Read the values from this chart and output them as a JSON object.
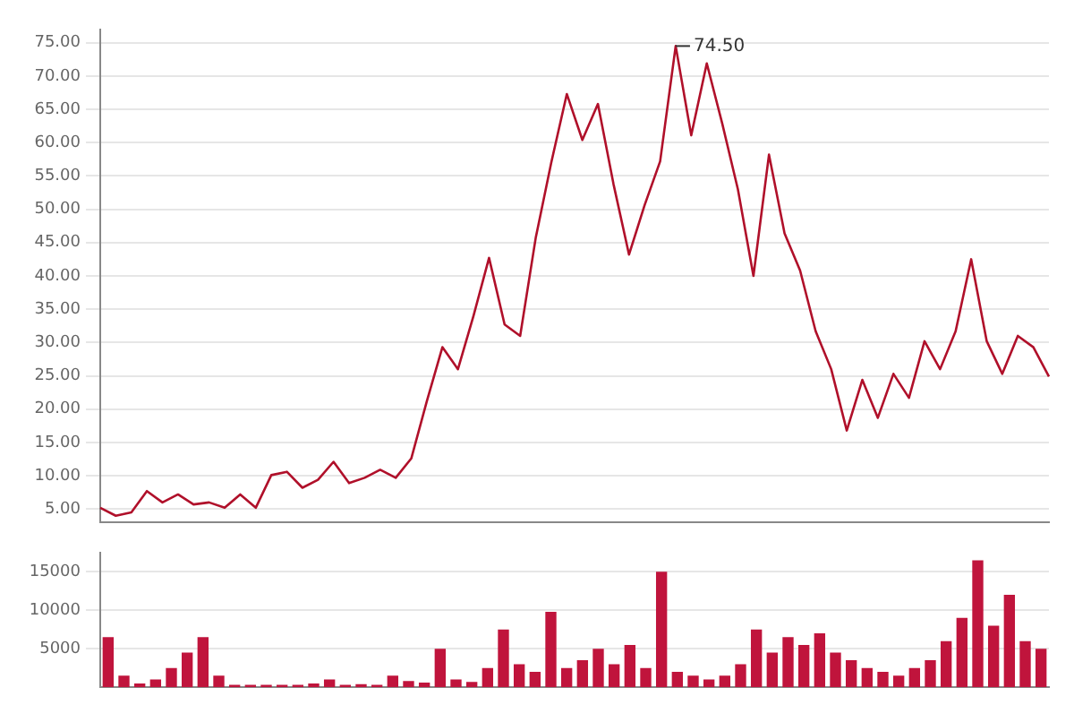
{
  "chart_data": [
    {
      "type": "line",
      "categories": [
        null,
        null,
        null,
        null,
        null,
        null,
        null,
        null,
        null,
        null,
        null,
        null,
        null,
        null,
        null,
        null,
        null,
        null,
        null,
        null,
        null,
        null,
        null,
        null,
        null,
        null,
        null,
        null,
        null,
        null,
        null,
        null,
        null,
        null,
        null,
        null,
        null,
        null,
        null,
        null,
        null,
        null,
        null,
        null,
        null,
        null,
        null,
        null,
        null,
        null,
        null,
        null,
        null,
        null,
        null,
        null,
        null,
        null,
        null,
        null,
        null,
        null
      ],
      "series": [
        {
          "color": "#b0102a",
          "values": [
            5.2,
            4.0,
            4.5,
            7.7,
            6.0,
            7.2,
            5.7,
            6.0,
            5.2,
            7.2,
            5.2,
            10.1,
            10.6,
            8.2,
            9.4,
            12.1,
            8.9,
            9.7,
            10.9,
            9.7,
            12.6,
            21.2,
            29.3,
            26,
            34,
            42.7,
            32.7,
            31,
            45.7,
            57,
            67.3,
            60.4,
            65.8,
            53.8,
            43.2,
            50.6,
            57.2,
            74.5,
            61.1,
            71.9,
            62.8,
            53,
            40,
            58.2,
            46.4,
            40.8,
            31.7,
            26,
            16.8,
            24.4,
            18.7,
            25.3,
            21.7,
            30.2,
            26,
            31.7,
            42.5,
            30.2,
            25.3,
            31,
            29.3,
            24.9
          ]
        }
      ],
      "ylim": [
        3,
        77
      ],
      "yticks": [
        {
          "value": 5,
          "label": "5.00"
        },
        {
          "value": 10,
          "label": "10.00"
        },
        {
          "value": 15,
          "label": "15.00"
        },
        {
          "value": 20,
          "label": "20.00"
        },
        {
          "value": 25,
          "label": "25.00"
        },
        {
          "value": 30,
          "label": "30.00"
        },
        {
          "value": 35,
          "label": "35.00"
        },
        {
          "value": 40,
          "label": "40.00"
        },
        {
          "value": 45,
          "label": "45.00"
        },
        {
          "value": 50,
          "label": "50.00"
        },
        {
          "value": 55,
          "label": "55.00"
        },
        {
          "value": 60,
          "label": "60.00"
        },
        {
          "value": 65,
          "label": "65.00"
        },
        {
          "value": 70,
          "label": "70.00"
        },
        {
          "value": 75,
          "label": "75.00"
        }
      ],
      "annotations": [
        "74.50"
      ],
      "grid": "y",
      "legend": false,
      "marker": "none",
      "tick_labels": "y"
    },
    {
      "type": "bar",
      "categories": [
        null,
        null,
        null,
        null,
        null,
        null,
        null,
        null,
        null,
        null,
        null,
        null,
        null,
        null,
        null,
        null,
        null,
        null,
        null,
        null,
        null,
        null,
        null,
        null,
        null,
        null,
        null,
        null,
        null,
        null,
        null,
        null,
        null,
        null,
        null,
        null,
        null,
        null,
        null,
        null,
        null,
        null,
        null,
        null,
        null,
        null,
        null,
        null,
        null,
        null,
        null,
        null,
        null,
        null,
        null,
        null,
        null,
        null,
        null,
        null
      ],
      "series": [
        {
          "color": "#c0143c",
          "values": [
            6500,
            1500,
            500,
            1000,
            2500,
            4500,
            6500,
            1500,
            300,
            300,
            300,
            300,
            300,
            500,
            1000,
            300,
            400,
            300,
            1500,
            800,
            600,
            5000,
            1000,
            700,
            2500,
            7500,
            3000,
            2000,
            9800,
            2500,
            3500,
            5000,
            3000,
            5500,
            2500,
            15000,
            2000,
            1500,
            1000,
            1500,
            3000,
            7500,
            4500,
            6500,
            5500,
            7000,
            4500,
            3500,
            2500,
            2000,
            1500,
            2500,
            3500,
            6000,
            9000,
            16500,
            8000,
            12000,
            6000,
            5000
          ]
        }
      ],
      "ylim": [
        0,
        17500
      ],
      "yticks": [
        5000,
        10000,
        15000
      ],
      "grid": "y",
      "legend": false,
      "tick_labels": "y"
    }
  ]
}
